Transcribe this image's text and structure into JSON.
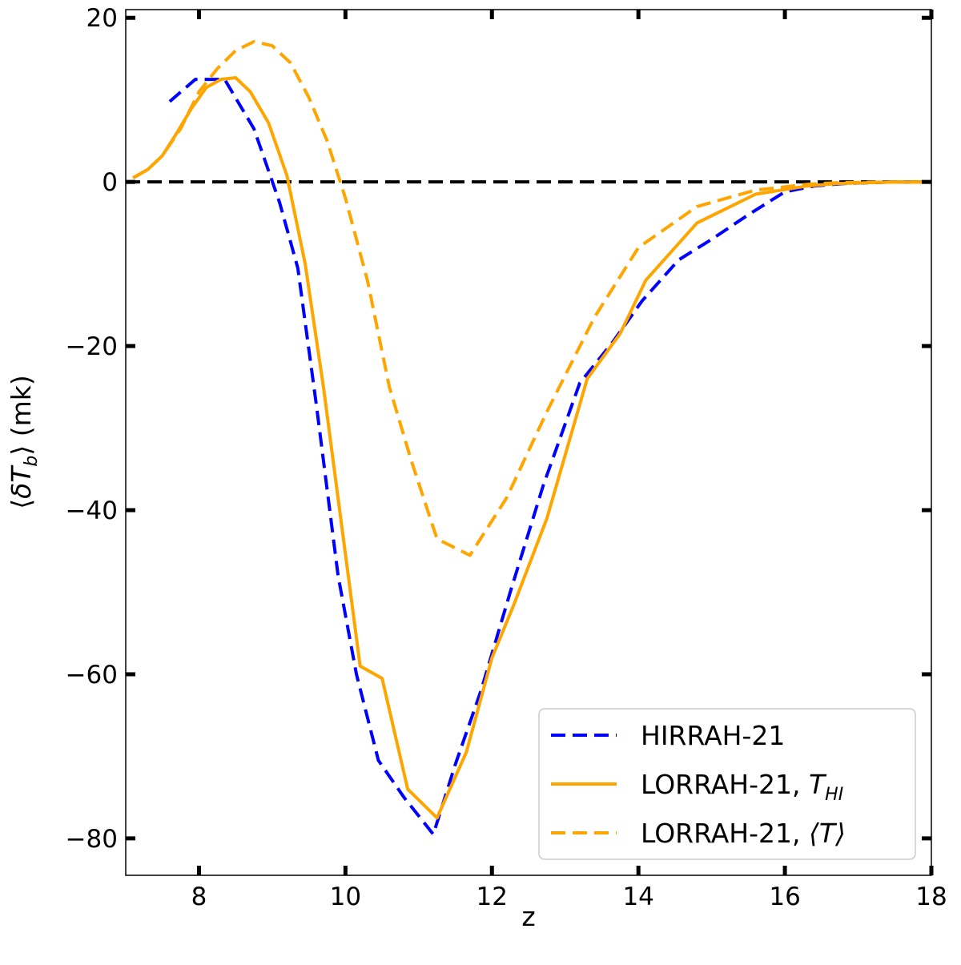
{
  "chart_data": {
    "type": "line",
    "xlabel": "z",
    "ylabel": "⟨δT_b⟩ (mk)",
    "xlim": [
      7.0,
      18.0
    ],
    "ylim": [
      -84.5,
      21.0
    ],
    "xticks": [
      8,
      10,
      12,
      14,
      16,
      18
    ],
    "yticks": [
      20,
      0,
      -20,
      -40,
      -60,
      -80
    ],
    "xtick_labels": [
      "8",
      "10",
      "12",
      "14",
      "16",
      "18"
    ],
    "ytick_labels": [
      "20",
      "0",
      "−20",
      "−40",
      "−60",
      "−80"
    ],
    "grid": false,
    "legend_position": "lower-right",
    "reference_line": {
      "y": 0,
      "style": "dashed",
      "color": "#000000"
    },
    "series": [
      {
        "name": "HIRRAH-21",
        "color": "#0000ff",
        "dash": "dashed",
        "x": [
          7.6,
          7.95,
          8.35,
          8.75,
          9.1,
          9.35,
          9.6,
          9.9,
          10.15,
          10.45,
          10.8,
          11.2,
          11.5,
          11.85,
          12.25,
          12.7,
          13.2,
          13.65,
          14.05,
          14.55,
          15.0,
          15.5,
          16.0,
          16.4,
          16.8,
          17.5,
          18.0
        ],
        "y": [
          9.8,
          12.5,
          12.5,
          6.5,
          -2.5,
          -10.5,
          -27.0,
          -48.0,
          -60.0,
          -70.5,
          -75.0,
          -79.5,
          -71.0,
          -62.0,
          -50.0,
          -37.0,
          -24.5,
          -19.5,
          -14.5,
          -9.5,
          -7.0,
          -4.0,
          -1.2,
          -0.5,
          -0.2,
          0.0,
          0.0
        ]
      },
      {
        "name": "LORRAH-21, T_HI",
        "label_main": "LORRAH-21, ",
        "label_symbol": "T",
        "label_sub": "HI",
        "color": "#ffa500",
        "dash": "solid",
        "x": [
          7.1,
          7.3,
          7.5,
          7.7,
          7.9,
          8.1,
          8.3,
          8.5,
          8.7,
          8.95,
          9.2,
          9.45,
          9.7,
          9.95,
          10.2,
          10.5,
          10.85,
          11.25,
          11.65,
          12.0,
          12.3,
          12.75,
          13.3,
          13.75,
          14.1,
          14.8,
          15.6,
          16.3,
          16.7,
          17.5,
          18.0
        ],
        "y": [
          0.5,
          1.5,
          3.2,
          6.0,
          9.0,
          11.5,
          12.5,
          12.7,
          11.0,
          7.2,
          0.8,
          -10.0,
          -25.0,
          -42.0,
          -59.0,
          -60.5,
          -74.0,
          -77.5,
          -69.5,
          -58.0,
          -51.5,
          -41.0,
          -24.0,
          -18.5,
          -12.0,
          -5.0,
          -1.5,
          -0.5,
          -0.2,
          0.0,
          0.0
        ]
      },
      {
        "name": "LORRAH-21, ⟨T⟩",
        "label_main": "LORRAH-21, ",
        "label_symbol": "⟨T⟩",
        "color": "#ffa500",
        "dash": "dashed",
        "x": [
          7.1,
          7.3,
          7.5,
          7.75,
          8.0,
          8.25,
          8.5,
          8.75,
          9.0,
          9.25,
          9.5,
          9.75,
          10.0,
          10.3,
          10.6,
          10.9,
          11.25,
          11.7,
          12.2,
          12.75,
          13.4,
          14.0,
          14.8,
          15.6,
          16.3,
          16.7,
          17.5,
          18.0
        ],
        "y": [
          0.5,
          1.5,
          3.2,
          6.5,
          11.0,
          13.8,
          16.0,
          17.1,
          16.6,
          14.5,
          10.3,
          5.0,
          -2.0,
          -12.0,
          -25.0,
          -34.0,
          -43.5,
          -45.5,
          -38.5,
          -28.0,
          -16.5,
          -8.0,
          -3.0,
          -1.0,
          -0.3,
          -0.1,
          0.0,
          0.0
        ]
      }
    ]
  }
}
